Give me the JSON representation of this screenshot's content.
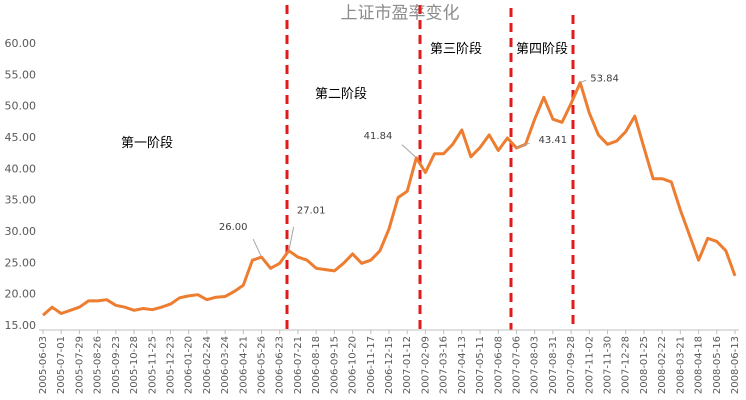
{
  "chart_data": {
    "type": "line",
    "title": "上证市盈率变化",
    "annotations": [
      "第一阶段",
      "第二阶段",
      "第三阶段",
      "第四阶段"
    ],
    "categories": [
      "2005-06-03",
      null,
      "2005-07-01",
      null,
      "2005-07-29",
      null,
      "2005-08-26",
      null,
      "2005-09-23",
      null,
      "2005-10-28",
      null,
      "2005-11-25",
      null,
      "2005-12-23",
      null,
      "2006-01-20",
      null,
      "2006-02-24",
      null,
      "2006-03-24",
      null,
      "2006-04-21",
      null,
      "2006-05-26",
      null,
      "2006-06-23",
      null,
      "2006-07-21",
      null,
      "2006-08-18",
      null,
      "2006-09-15",
      null,
      "2006-10-20",
      null,
      "2006-11-17",
      null,
      "2006-12-15",
      null,
      "2007-01-12",
      null,
      "2007-02-09",
      null,
      "2007-03-16",
      null,
      "2007-04-13",
      null,
      "2007-05-11",
      null,
      "2007-06-08",
      null,
      "2007-07-06",
      null,
      "2007-08-03",
      null,
      "2007-08-31",
      null,
      "2007-09-28",
      null,
      "2007-11-02",
      null,
      "2007-11-30",
      null,
      "2007-12-28",
      null,
      "2008-01-25",
      null,
      "2008-02-22",
      null,
      "2008-03-21",
      null,
      "2008-04-18",
      null,
      "2008-05-16",
      null,
      "2008-06-13"
    ],
    "series": [
      {
        "color": "#ed7d31",
        "values": [
          16.7,
          18.0,
          17.0,
          17.5,
          18.0,
          19.0,
          19.0,
          19.2,
          18.3,
          18.0,
          17.5,
          17.8,
          17.6,
          18.0,
          18.5,
          19.5,
          19.8,
          20.0,
          19.2,
          19.6,
          19.7,
          20.5,
          21.5,
          25.5,
          26.0,
          24.2,
          25.0,
          27.01,
          26.0,
          25.5,
          24.2,
          24.0,
          23.8,
          25.0,
          26.5,
          25.0,
          25.5,
          27.0,
          30.5,
          35.5,
          36.5,
          41.84,
          39.5,
          42.5,
          42.5,
          44.0,
          46.3,
          42.0,
          43.5,
          45.5,
          43.0,
          45.0,
          43.41,
          44.0,
          48.0,
          51.5,
          48.0,
          47.5,
          50.5,
          53.84,
          49.0,
          45.5,
          44.0,
          44.5,
          46.0,
          48.5,
          43.5,
          38.5,
          38.5,
          38.0,
          33.5,
          29.5,
          25.5,
          29.0,
          28.5,
          27.0,
          23.0
        ],
        "value_labels": [
          null,
          null,
          null,
          null,
          null,
          null,
          null,
          null,
          null,
          null,
          null,
          null,
          null,
          null,
          null,
          null,
          null,
          null,
          null,
          null,
          null,
          null,
          null,
          null,
          "26.00",
          null,
          null,
          "27.01",
          null,
          null,
          null,
          null,
          null,
          null,
          null,
          null,
          null,
          null,
          null,
          null,
          null,
          "41.84",
          null,
          null,
          null,
          null,
          null,
          null,
          null,
          null,
          null,
          null,
          "43.41",
          null,
          null,
          null,
          null,
          null,
          null,
          "53.84",
          null,
          null,
          null,
          null,
          null,
          null,
          null,
          null,
          null,
          null,
          null,
          null,
          null,
          null,
          null,
          null,
          null
        ]
      }
    ],
    "ylim": [
      15,
      60
    ],
    "yticks": [
      {
        "value": 15,
        "label": "15.00"
      },
      {
        "value": 20,
        "label": "20.00"
      },
      {
        "value": 25,
        "label": "25.00"
      },
      {
        "value": 30,
        "label": "30.00"
      },
      {
        "value": 35,
        "label": "35.00"
      },
      {
        "value": 40,
        "label": "40.00"
      },
      {
        "value": 45,
        "label": "45.00"
      },
      {
        "value": 50,
        "label": "50.00"
      },
      {
        "value": 55,
        "label": "55.00"
      },
      {
        "value": 60,
        "label": "60.00"
      }
    ],
    "grid": false
  }
}
